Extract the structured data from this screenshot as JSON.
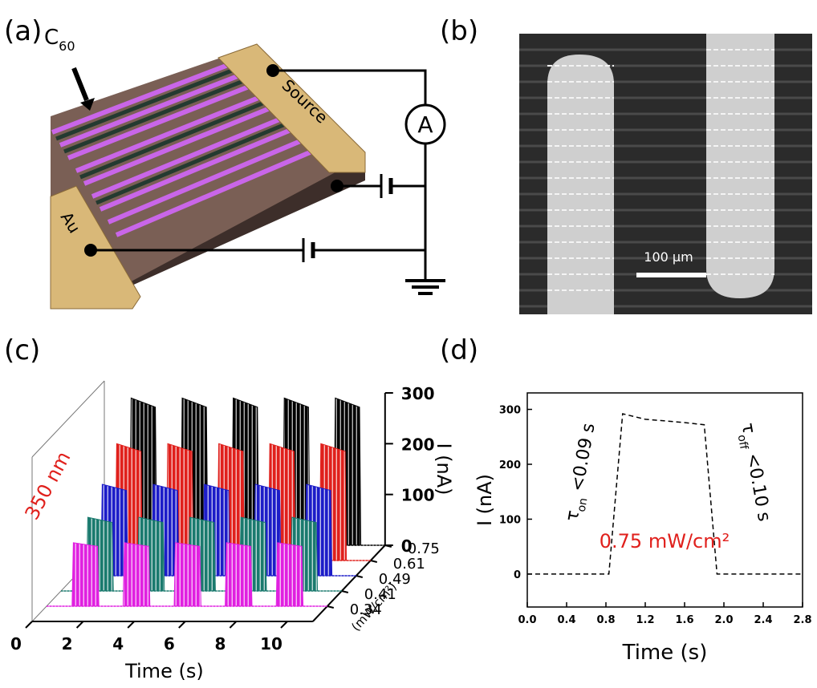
{
  "panel_a": {
    "label": "(a)",
    "c60": {
      "base": "C",
      "sub": "60"
    },
    "source": "Source",
    "au": "Au",
    "ammeter": "A"
  },
  "panel_b": {
    "label": "(b)",
    "scale_bar": "100 μm"
  },
  "panel_c": {
    "label": "(c)"
  },
  "panel_d": {
    "label": "(d)"
  },
  "chart_data": [
    {
      "type": "waterfall",
      "annotation": "350 nm",
      "xlabel": "Time (s)",
      "ylabel": "I (nA)",
      "zlabel": "(mW/cm²)",
      "x": [
        0,
        1.0,
        1.05,
        2.0,
        2.05,
        3.0,
        3.05,
        4.0,
        4.05,
        5.0,
        5.05,
        6.0,
        6.05,
        7.0,
        7.05,
        8.0,
        8.05,
        9.0,
        9.05,
        10.0,
        10.05,
        11
      ],
      "xlim": [
        0,
        11
      ],
      "xticks": [
        0,
        2,
        4,
        6,
        8,
        10
      ],
      "ylim": [
        0,
        300
      ],
      "yticks": [
        0,
        100,
        200,
        300
      ],
      "series": [
        {
          "name": "0.75",
          "color": "#000000",
          "values": [
            0,
            0,
            290,
            272,
            0,
            0,
            290,
            272,
            0,
            0,
            290,
            272,
            0,
            0,
            290,
            272,
            0,
            0,
            290,
            272,
            0,
            0
          ]
        },
        {
          "name": "0.61",
          "color": "#e0201c",
          "values": [
            0,
            0,
            230,
            215,
            0,
            0,
            230,
            215,
            0,
            0,
            230,
            215,
            0,
            0,
            230,
            215,
            0,
            0,
            230,
            215,
            0,
            0
          ]
        },
        {
          "name": "0.49",
          "color": "#1c1cc8",
          "values": [
            0,
            0,
            180,
            168,
            0,
            0,
            180,
            168,
            0,
            0,
            180,
            168,
            0,
            0,
            180,
            168,
            0,
            0,
            180,
            168,
            0,
            0
          ]
        },
        {
          "name": "0.41",
          "color": "#1a7a6e",
          "values": [
            0,
            0,
            145,
            135,
            0,
            0,
            145,
            135,
            0,
            0,
            145,
            135,
            0,
            0,
            145,
            135,
            0,
            0,
            145,
            135,
            0,
            0
          ]
        },
        {
          "name": "0.34",
          "color": "#e020e0",
          "values": [
            0,
            0,
            125,
            118,
            0,
            0,
            125,
            118,
            0,
            0,
            125,
            118,
            0,
            0,
            125,
            118,
            0,
            0,
            125,
            118,
            0,
            0
          ]
        }
      ]
    },
    {
      "type": "line",
      "xlabel": "Time (s)",
      "ylabel": "I (nA)",
      "color": "#000000",
      "x": [
        0,
        0.83,
        0.97,
        1.2,
        1.6,
        1.8,
        1.93,
        2.8
      ],
      "values": [
        0,
        0,
        292,
        282,
        276,
        272,
        0,
        0
      ],
      "xlim": [
        0,
        2.8
      ],
      "ylim": [
        -60,
        330
      ],
      "xticks": [
        {
          "value": 0,
          "label": "0.0"
        },
        0.4,
        0.8,
        1.2,
        1.6,
        {
          "value": 2,
          "label": "2.0"
        },
        2.4,
        2.8
      ],
      "yticks": [
        0,
        100,
        200,
        300
      ],
      "tau_on": {
        "symbol": "τ",
        "sub": "on",
        "text": " <0.09 s"
      },
      "tau_off": {
        "symbol": "τ",
        "sub": "off",
        "text": " <0.10 s"
      },
      "intensity": "0.75 mW/cm²"
    }
  ]
}
